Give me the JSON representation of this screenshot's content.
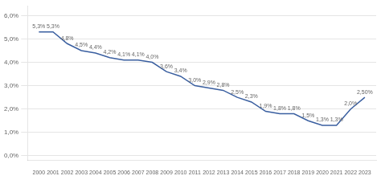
{
  "chart_data": {
    "type": "line",
    "x": [
      2000,
      2001,
      2002,
      2003,
      2004,
      2005,
      2006,
      2007,
      2008,
      2009,
      2010,
      2011,
      2012,
      2013,
      2014,
      2015,
      2016,
      2017,
      2018,
      2019,
      2020,
      2021,
      2022,
      2023
    ],
    "values": [
      5.3,
      5.3,
      4.8,
      4.5,
      4.4,
      4.2,
      4.1,
      4.1,
      4.0,
      3.6,
      3.4,
      3.0,
      2.9,
      2.8,
      2.5,
      2.3,
      1.9,
      1.8,
      1.8,
      1.5,
      1.3,
      1.3,
      2.0,
      2.5
    ],
    "value_labels": [
      "5,3%",
      "5,3%",
      "4,8%",
      "4,5%",
      "4,4%",
      "4,2%",
      "4,1%",
      "4,1%",
      "4,0%",
      "3,6%",
      "3,4%",
      "3,0%",
      "2,9%",
      "2,8%",
      "2,5%",
      "2,3%",
      "1,9%",
      "1,8%",
      "1,8%",
      "1,5%",
      "1,3%",
      "1,3%",
      "2,0%",
      "2,50%"
    ],
    "data_labels": true,
    "color": "#3a5fa0",
    "xlim": [
      1999.2,
      2023.8
    ],
    "xticks": [
      2000,
      2001,
      2002,
      2003,
      2004,
      2005,
      2006,
      2007,
      2008,
      2009,
      2010,
      2011,
      2012,
      2013,
      2014,
      2015,
      2016,
      2017,
      2018,
      2019,
      2020,
      2021,
      2022,
      2023
    ],
    "ylim": [
      -0.2,
      6.4
    ],
    "yticks": [
      {
        "value": 0.0,
        "label": "0,0%"
      },
      {
        "value": 1.0,
        "label": "1,0%"
      },
      {
        "value": 2.0,
        "label": "2,0%"
      },
      {
        "value": 3.0,
        "label": "3,0%"
      },
      {
        "value": 4.0,
        "label": "4,0%"
      },
      {
        "value": 5.0,
        "label": "5,0%"
      },
      {
        "value": 6.0,
        "label": "6,0%"
      }
    ],
    "grid": "y"
  }
}
